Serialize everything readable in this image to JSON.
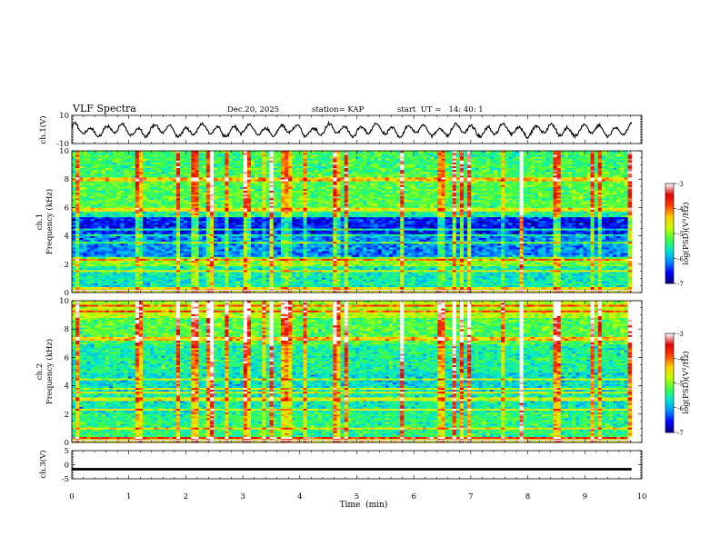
{
  "header": {
    "title": "VLF Spectra",
    "date": "Dec.20, 2025",
    "station": "station= KAP",
    "start_time": "start  UT =   14: 40: 1"
  },
  "chart_data": [
    {
      "name": "ch1-waveform",
      "type": "line",
      "ylabel": "ch.1(V)",
      "yticks": [
        "10",
        "-10"
      ],
      "ylim": [
        -10,
        10
      ],
      "xlim": [
        0,
        10
      ],
      "x_end": 9.82,
      "style": "continuous noisy oscillation roughly between -7 V and +6 V"
    },
    {
      "name": "ch1-spectrogram",
      "type": "heatmap",
      "ylabel_lines": [
        "ch.1",
        "Frequency  (kHz)"
      ],
      "yticks": [
        "0",
        "2",
        "4",
        "6",
        "8",
        "10"
      ],
      "ylim": [
        0,
        10
      ],
      "xlim": [
        0,
        10
      ],
      "colorbar": {
        "label": "log(PSD)(V²/Hz)",
        "ticks": [
          "-3",
          "-4",
          "-5",
          "-6",
          "-7"
        ],
        "range": [
          -7,
          -3
        ],
        "colormap": [
          "#00007a",
          "#0000ff",
          "#0090ff",
          "#00e8d0",
          "#40ff40",
          "#c8ff00",
          "#ffd000",
          "#ff4000",
          "#e00000",
          "#ffffff"
        ]
      },
      "bands": [
        {
          "f": [
            0,
            0.4
          ],
          "level": -4.5
        },
        {
          "f": [
            0.4,
            1.8
          ],
          "level": -5.6
        },
        {
          "f": [
            1.8,
            2.4
          ],
          "level": -5.0
        },
        {
          "f": [
            2.4,
            4.0
          ],
          "level": -6.1
        },
        {
          "f": [
            4.0,
            5.4
          ],
          "level": -6.5
        },
        {
          "f": [
            5.4,
            6.0
          ],
          "level": -5.5
        },
        {
          "f": [
            6.0,
            8.5
          ],
          "level": -5.2
        },
        {
          "f": [
            8.5,
            10.0
          ],
          "level": -5.3
        }
      ]
    },
    {
      "name": "ch2-spectrogram",
      "type": "heatmap",
      "ylabel_lines": [
        "ch.2",
        "Frequency  (kHz)"
      ],
      "yticks": [
        "0",
        "2",
        "4",
        "6",
        "8",
        "10"
      ],
      "ylim": [
        0,
        10
      ],
      "xlim": [
        0,
        10
      ],
      "colorbar": {
        "label": "log(PSD)(V²/Hz)",
        "ticks": [
          "-3",
          "-4",
          "-5",
          "-6",
          "-7"
        ],
        "range": [
          -7,
          -3
        ]
      },
      "bands": [
        {
          "f": [
            0,
            0.4
          ],
          "level": -4.5
        },
        {
          "f": [
            0.4,
            2.2
          ],
          "level": -5.4
        },
        {
          "f": [
            2.2,
            3.6
          ],
          "level": -5.6
        },
        {
          "f": [
            3.6,
            5.0
          ],
          "level": -5.7
        },
        {
          "f": [
            5.0,
            7.0
          ],
          "level": -5.5
        },
        {
          "f": [
            7.0,
            8.8
          ],
          "level": -5.2
        },
        {
          "f": [
            8.8,
            10.0
          ],
          "level": -4.8
        }
      ]
    },
    {
      "name": "ch3-waveform",
      "type": "line",
      "ylabel": "ch.3(V)",
      "yticks": [
        "5",
        "0",
        "-5"
      ],
      "ylim": [
        -5,
        5
      ],
      "xlim": [
        0,
        10
      ],
      "x_end": 9.82,
      "band_center": -1.6,
      "band_halfwidth": 0.45
    }
  ],
  "x_axis": {
    "label": "Time  (min)",
    "ticks": [
      "0",
      "1",
      "2",
      "3",
      "4",
      "5",
      "6",
      "7",
      "8",
      "9",
      "10"
    ],
    "range": [
      0,
      10
    ]
  }
}
